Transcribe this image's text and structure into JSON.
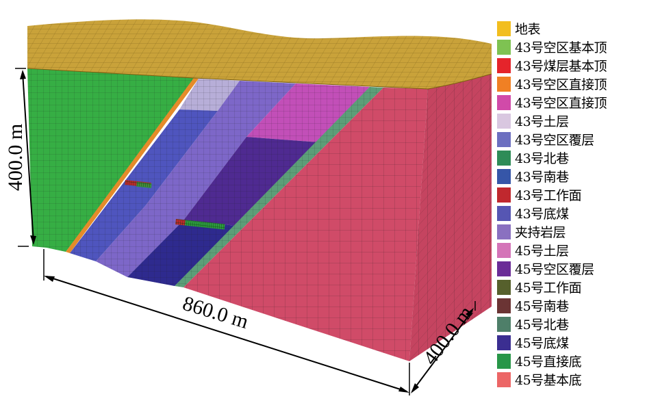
{
  "dimensions": {
    "height": "400.0 m",
    "length": "860.0 m",
    "width": "400.0 m"
  },
  "legend": [
    {
      "label": "地表",
      "color": "#F2BE1E"
    },
    {
      "label": "43号空区基本顶",
      "color": "#7EC252"
    },
    {
      "label": "43号煤层基本顶",
      "color": "#E5242B"
    },
    {
      "label": "43号空区直接顶",
      "color": "#F08024"
    },
    {
      "label": "43号空区直接顶",
      "color": "#D14AA9"
    },
    {
      "label": "43号土层",
      "color": "#D9C7E0"
    },
    {
      "label": "43号空区覆层",
      "color": "#6C6FC0"
    },
    {
      "label": "43号北巷",
      "color": "#2E8C57"
    },
    {
      "label": "43号南巷",
      "color": "#3656A8"
    },
    {
      "label": "43号工作面",
      "color": "#C0282E"
    },
    {
      "label": "43号底煤",
      "color": "#5656B3"
    },
    {
      "label": "夹持岩层",
      "color": "#8A70C0"
    },
    {
      "label": "45号土层",
      "color": "#D474B8"
    },
    {
      "label": "45号空区覆层",
      "color": "#6B2C97"
    },
    {
      "label": "45号工作面",
      "color": "#56602C"
    },
    {
      "label": "45号南巷",
      "color": "#6B3434"
    },
    {
      "label": "45号北巷",
      "color": "#4E7F69"
    },
    {
      "label": "45号底煤",
      "color": "#3B2E91"
    },
    {
      "label": "45号直接底",
      "color": "#289648"
    },
    {
      "label": "45号基本底",
      "color": "#EC6666"
    }
  ],
  "colors": {
    "surface": "#C9A23A",
    "green_block": "#36AE44",
    "red_block": "#D04B68",
    "red_side": "#C54460",
    "orange_seam": "#E58B2A",
    "blue_band": "#4F55BE",
    "lavender_top": "#B7AED8",
    "violet_band": "#7D67C8",
    "dark_navy": "#2E2A8E",
    "dark_purple": "#4F2A91",
    "magenta": "#C24FB8",
    "teal_band": "#5C9E78",
    "grid": "#1a1a1a",
    "working_face": "#C0282E"
  }
}
